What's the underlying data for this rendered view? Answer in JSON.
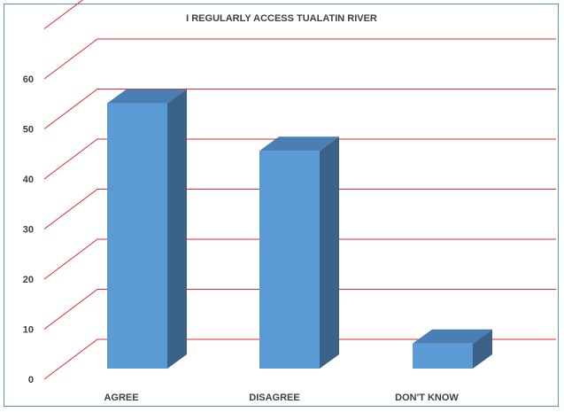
{
  "chart_data": {
    "type": "bar",
    "style": "3d-column",
    "title": "I REGULARLY ACCESS TUALATIN RIVER",
    "xlabel": "",
    "ylabel": "",
    "categories": [
      "AGREE",
      "DISAGREE",
      "DON'T KNOW"
    ],
    "values": [
      53,
      43.5,
      5
    ],
    "ylim": [
      0,
      60
    ],
    "yticks": [
      "0",
      "10",
      "20",
      "30",
      "40",
      "50",
      "60"
    ],
    "grid": true,
    "legend": "none"
  },
  "colors": {
    "bar_front": "#5b9bd5",
    "bar_side": "#3b6389",
    "bar_top": "#4a7fb3",
    "gridline": "#e8262b",
    "frame_border": "#5b8fc7"
  }
}
